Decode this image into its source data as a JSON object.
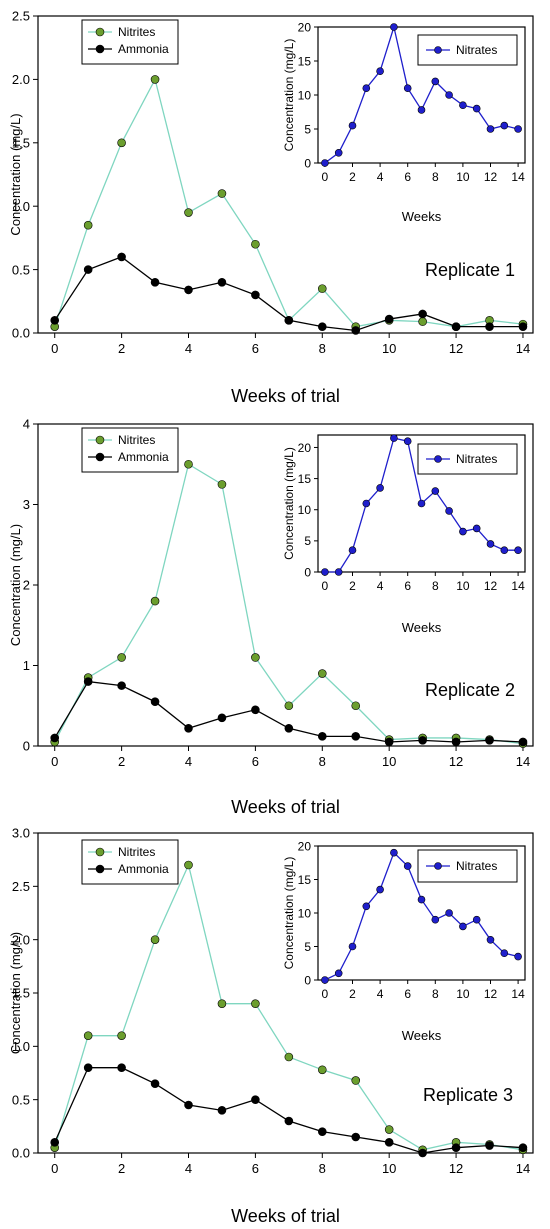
{
  "colors": {
    "nitrites_fill": "#6b9e2e",
    "nitrites_line": "#7fd6c0",
    "ammonia": "#000000",
    "nitrates": "#1f1fcc"
  },
  "chart_data": [
    {
      "type": "line",
      "annotation": "Replicate 1",
      "xlabel": "Weeks of trial",
      "ylabel": "Concentration (mg/L)",
      "xlim": [
        -0.5,
        14.3
      ],
      "ylim": [
        0,
        2.5
      ],
      "x_ticks": [
        "0",
        "2",
        "4",
        "6",
        "8",
        "10",
        "12",
        "14"
      ],
      "y_ticks": [
        "0.0",
        "0.5",
        "1.0",
        "1.5",
        "2.0",
        "2.5"
      ],
      "legend": "top-left",
      "series": [
        {
          "name": "Nitrites",
          "x": [
            0,
            1,
            2,
            3,
            4,
            5,
            6,
            7,
            8,
            9,
            10,
            11,
            12,
            13,
            14
          ],
          "values": [
            0.05,
            0.85,
            1.5,
            2.0,
            0.95,
            1.1,
            0.7,
            0.1,
            0.35,
            0.05,
            0.1,
            0.09,
            0.05,
            0.1,
            0.07
          ]
        },
        {
          "name": "Ammonia",
          "x": [
            0,
            1,
            2,
            3,
            4,
            5,
            6,
            7,
            8,
            9,
            10,
            11,
            12,
            13,
            14
          ],
          "values": [
            0.1,
            0.5,
            0.6,
            0.4,
            0.34,
            0.4,
            0.3,
            0.1,
            0.05,
            0.02,
            0.11,
            0.15,
            0.05,
            0.05,
            0.05
          ]
        }
      ],
      "inset": {
        "type": "line",
        "xlabel": "Weeks",
        "ylabel": "Concentration (mg/L)",
        "xlim": [
          -0.5,
          14.5
        ],
        "ylim": [
          0,
          20
        ],
        "x_ticks": [
          "0",
          "2",
          "4",
          "6",
          "8",
          "10",
          "12",
          "14"
        ],
        "y_ticks": [
          "0",
          "5",
          "10",
          "15",
          "20"
        ],
        "legend": "top-right",
        "series": [
          {
            "name": "Nitrates",
            "x": [
              0,
              1,
              2,
              3,
              4,
              5,
              6,
              7,
              8,
              9,
              10,
              11,
              12,
              13,
              14
            ],
            "values": [
              0,
              1.5,
              5.5,
              11,
              13.5,
              20,
              11,
              7.8,
              12,
              10,
              8.5,
              8,
              5,
              5.5,
              5
            ]
          }
        ]
      }
    },
    {
      "type": "line",
      "annotation": "Replicate 2",
      "xlabel": "Weeks of trial",
      "ylabel": "Concentration (mg/L)",
      "xlim": [
        -0.5,
        14.3
      ],
      "ylim": [
        0,
        4
      ],
      "x_ticks": [
        "0",
        "2",
        "4",
        "6",
        "8",
        "10",
        "12",
        "14"
      ],
      "y_ticks": [
        "0",
        "1",
        "2",
        "3",
        "4"
      ],
      "legend": "top-left",
      "series": [
        {
          "name": "Nitrites",
          "x": [
            0,
            1,
            2,
            3,
            4,
            5,
            6,
            7,
            8,
            9,
            10,
            11,
            12,
            13,
            14
          ],
          "values": [
            0.05,
            0.85,
            1.1,
            1.8,
            3.5,
            3.25,
            1.1,
            0.5,
            0.9,
            0.5,
            0.08,
            0.1,
            0.1,
            0.08,
            0.03
          ]
        },
        {
          "name": "Ammonia",
          "x": [
            0,
            1,
            2,
            3,
            4,
            5,
            6,
            7,
            8,
            9,
            10,
            11,
            12,
            13,
            14
          ],
          "values": [
            0.1,
            0.8,
            0.75,
            0.55,
            0.22,
            0.35,
            0.45,
            0.22,
            0.12,
            0.12,
            0.05,
            0.07,
            0.05,
            0.07,
            0.05
          ]
        }
      ],
      "inset": {
        "type": "line",
        "xlabel": "Weeks",
        "ylabel": "Concentration (mg/L)",
        "xlim": [
          -0.5,
          14.5
        ],
        "ylim": [
          0,
          22
        ],
        "x_ticks": [
          "0",
          "2",
          "4",
          "6",
          "8",
          "10",
          "12",
          "14"
        ],
        "y_ticks": [
          "0",
          "5",
          "10",
          "15",
          "20"
        ],
        "legend": "top-right",
        "series": [
          {
            "name": "Nitrates",
            "x": [
              0,
              1,
              2,
              3,
              4,
              5,
              6,
              7,
              8,
              9,
              10,
              11,
              12,
              13,
              14
            ],
            "values": [
              0,
              0,
              3.5,
              11,
              13.5,
              21.5,
              21,
              11,
              13,
              9.8,
              6.5,
              7,
              4.5,
              3.5,
              3.5
            ]
          }
        ]
      }
    },
    {
      "type": "line",
      "annotation": "Replicate 3",
      "xlabel": "Weeks of trial",
      "ylabel": "Concentration (mg/L)",
      "xlim": [
        -0.5,
        14.3
      ],
      "ylim": [
        0,
        3.0
      ],
      "x_ticks": [
        "0",
        "2",
        "4",
        "6",
        "8",
        "10",
        "12",
        "14"
      ],
      "y_ticks": [
        "0.0",
        "0.5",
        "1.0",
        "1.5",
        "2.0",
        "2.5",
        "3.0"
      ],
      "legend": "top-left",
      "series": [
        {
          "name": "Nitrites",
          "x": [
            0,
            1,
            2,
            3,
            4,
            5,
            6,
            7,
            8,
            9,
            10,
            11,
            12,
            13,
            14
          ],
          "values": [
            0.05,
            1.1,
            1.1,
            2.0,
            2.7,
            1.4,
            1.4,
            0.9,
            0.78,
            0.68,
            0.22,
            0.03,
            0.1,
            0.08,
            0.03
          ]
        },
        {
          "name": "Ammonia",
          "x": [
            0,
            1,
            2,
            3,
            4,
            5,
            6,
            7,
            8,
            9,
            10,
            11,
            12,
            13,
            14
          ],
          "values": [
            0.1,
            0.8,
            0.8,
            0.65,
            0.45,
            0.4,
            0.5,
            0.3,
            0.2,
            0.15,
            0.1,
            0.0,
            0.05,
            0.07,
            0.05
          ]
        }
      ],
      "inset": {
        "type": "line",
        "xlabel": "Weeks",
        "ylabel": "Concentration (mg/L)",
        "xlim": [
          -0.5,
          14.5
        ],
        "ylim": [
          0,
          20
        ],
        "x_ticks": [
          "0",
          "2",
          "4",
          "6",
          "8",
          "10",
          "12",
          "14"
        ],
        "y_ticks": [
          "0",
          "5",
          "10",
          "15",
          "20"
        ],
        "legend": "top-right",
        "series": [
          {
            "name": "Nitrates",
            "x": [
              0,
              1,
              2,
              3,
              4,
              5,
              6,
              7,
              8,
              9,
              10,
              11,
              12,
              13,
              14
            ],
            "values": [
              0,
              1,
              5,
              11,
              13.5,
              19,
              17,
              12,
              9,
              10,
              8,
              9,
              6,
              4,
              3.5
            ]
          }
        ]
      }
    }
  ]
}
